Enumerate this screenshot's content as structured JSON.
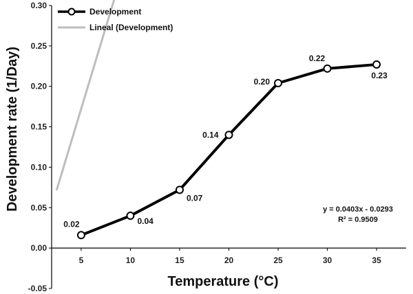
{
  "chart_data": {
    "type": "line",
    "xlabel": "Temperature (°C)",
    "ylabel": "Development rate (1/Day)",
    "xlim": [
      2,
      38
    ],
    "ylim": [
      -0.05,
      0.3
    ],
    "x_ticks": [
      5,
      10,
      15,
      20,
      25,
      30,
      35
    ],
    "y_ticks": [
      -0.05,
      0.0,
      0.05,
      0.1,
      0.15,
      0.2,
      0.25,
      0.3
    ],
    "grid": false,
    "legend_position": "top-left",
    "series": [
      {
        "name": "Development",
        "x": [
          5,
          10,
          15,
          20,
          25,
          30,
          35
        ],
        "y": [
          0.016,
          0.04,
          0.072,
          0.14,
          0.204,
          0.222,
          0.227
        ],
        "labels": [
          "0.02",
          "0.04",
          "0.07",
          "0.14",
          "0.20",
          "0.22",
          "0.23"
        ],
        "color": "#000000",
        "marker": "open-circle"
      },
      {
        "name": "Lineal (Development)",
        "type": "trendline",
        "slope": 0.0403,
        "intercept": -0.0293,
        "x_range": [
          2.5,
          35
        ],
        "color": "#bdbdbd"
      }
    ],
    "equation": "y = 0.0403x - 0.0293",
    "r_squared": "R² = 0.9509"
  }
}
